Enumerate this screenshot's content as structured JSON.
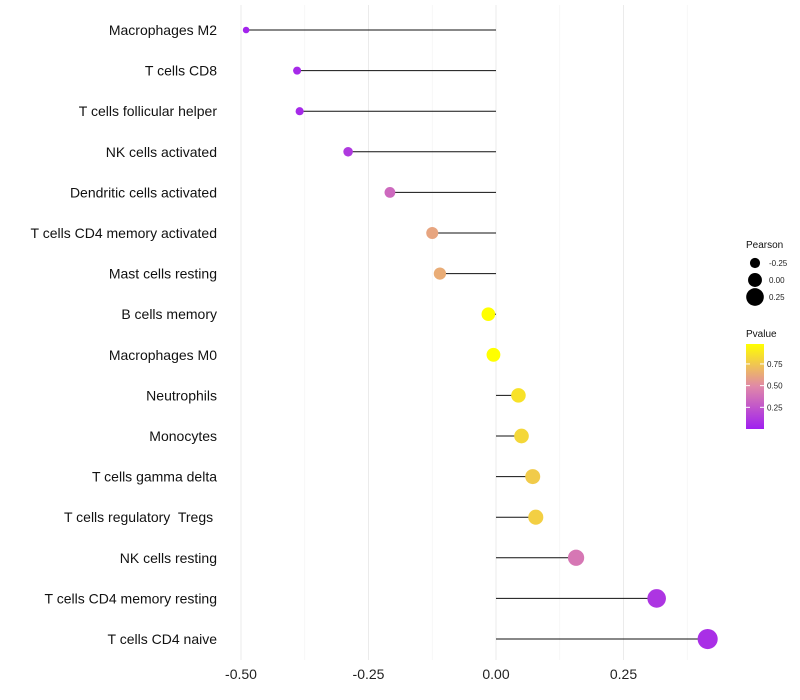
{
  "chart_data": {
    "type": "scatter",
    "title": "",
    "xlabel": "",
    "ylabel": "",
    "xlim": [
      -0.5,
      0.42
    ],
    "xticks": [
      -0.5,
      -0.25,
      0.0,
      0.25
    ],
    "xtick_labels": [
      "-0.50",
      "-0.25",
      "0.00",
      "0.25"
    ],
    "categories": [
      "Macrophages M2",
      "T cells CD8",
      "T cells follicular helper",
      "NK cells activated",
      "Dendritic cells activated",
      "T cells CD4 memory activated",
      "Mast cells resting",
      "B cells memory",
      "Macrophages M0",
      "Neutrophils",
      "Monocytes",
      "T cells gamma delta",
      "T cells regulatory  Tregs ",
      "NK cells resting",
      "T cells CD4 memory resting",
      "T cells CD4 naive"
    ],
    "pearson": [
      -0.49,
      -0.39,
      -0.385,
      -0.29,
      -0.208,
      -0.125,
      -0.11,
      -0.015,
      -0.005,
      0.044,
      0.05,
      0.072,
      0.078,
      0.157,
      0.315,
      0.415
    ],
    "pvalue": [
      0.02,
      0.05,
      0.05,
      0.12,
      0.35,
      0.62,
      0.65,
      1.0,
      1.0,
      0.88,
      0.83,
      0.78,
      0.8,
      0.42,
      0.1,
      0.07
    ],
    "legend": {
      "size_title": "Pearson",
      "size_breaks": [
        -0.25,
        0.0,
        0.25
      ],
      "size_labels": [
        "-0.25",
        "0.00",
        "0.25"
      ],
      "color_title": "Pvalue",
      "color_breaks": [
        0.75,
        0.5,
        0.25
      ],
      "color_labels": [
        "0.75",
        "0.50",
        "0.25"
      ],
      "color_low": "#a020f0",
      "color_mid": "#e088a8",
      "color_high": "#ffff00",
      "position": "right"
    }
  }
}
